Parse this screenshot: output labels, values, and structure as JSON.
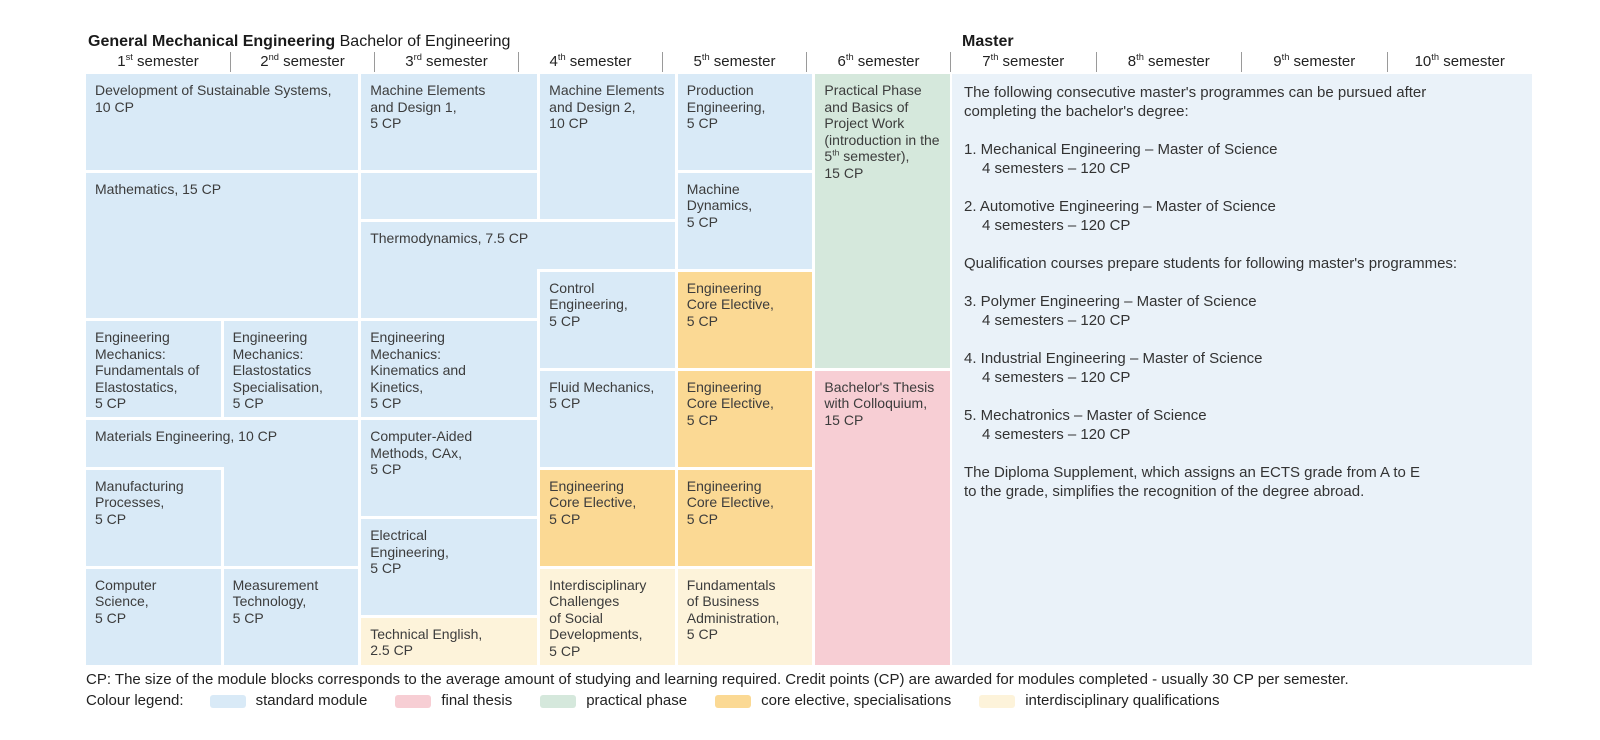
{
  "title": {
    "bachelor_bold": "General Mechanical Engineering",
    "bachelor_rest": " Bachelor of Engineering",
    "master": "Master"
  },
  "semester_headers": [
    {
      "html": "1<sup>st</sup> semester"
    },
    {
      "html": "2<sup>nd</sup> semester"
    },
    {
      "html": "3<sup>rd</sup> semester"
    },
    {
      "html": "4<sup>th</sup> semester"
    },
    {
      "html": "5<sup>th</sup> semester"
    },
    {
      "html": "6<sup>th</sup> semester"
    },
    {
      "html": "7<sup>th</sup> semester"
    },
    {
      "html": "8<sup>th</sup> semester"
    },
    {
      "html": "9<sup>th</sup> semester"
    },
    {
      "html": "10<sup>th</sup> semester"
    }
  ],
  "colors": {
    "standard_module": "#d9eaf7",
    "final_thesis": "#f7ced4",
    "practical_phase": "#d5e8dc",
    "core_elective": "#fbd994",
    "interdisciplinary": "#fdf3da",
    "master_panel": "#eaf2f9"
  },
  "modules": {
    "development_of_sustainable_systems": {
      "text": "Development of Sustainable Systems,\n10 CP"
    },
    "mathematics": {
      "text": "Mathematics, 15 CP"
    },
    "engineering_mechanics_fundamentals": {
      "text": "Engineering\nMechanics:\nFundamentals of\nElastostatics,\n5 CP"
    },
    "engineering_mechanics_specialisation": {
      "text": "Engineering\nMechanics:\nElastostatics\nSpecialisation,\n5 CP"
    },
    "materials_engineering": {
      "text": "Materials Engineering, 10 CP"
    },
    "manufacturing_processes": {
      "text": "Manufacturing\nProcesses,\n5 CP"
    },
    "computer_science": {
      "text": "Computer Science,\n5 CP"
    },
    "measurement_technology": {
      "text": "Measurement\nTechnology,\n5 CP"
    },
    "machine_elements_1": {
      "text": "Machine Elements\nand Design 1,\n5 CP"
    },
    "thermodynamics": {
      "text": "Thermodynamics, 7.5 CP"
    },
    "engineering_mechanics_kinematics": {
      "text": "Engineering\nMechanics:\nKinematics and\nKinetics,\n5 CP"
    },
    "computer_aided_methods": {
      "text": "Computer-Aided\nMethods, CAx,\n5 CP"
    },
    "electrical_engineering": {
      "text": "Electrical\nEngineering,\n5 CP"
    },
    "technical_english": {
      "text": "Technical English,\n2.5 CP"
    },
    "machine_elements_2": {
      "text": "Machine Elements\nand Design 2,\n10 CP"
    },
    "control_engineering": {
      "text": "Control\nEngineering,\n5 CP"
    },
    "fluid_mechanics": {
      "text": "Fluid Mechanics,\n5 CP"
    },
    "engineering_core_elective_sem4": {
      "text": "Engineering\nCore Elective,\n5 CP"
    },
    "interdisciplinary_challenges": {
      "text": "Interdisciplinary\nChallenges\nof Social\nDevelopments,\n5 CP"
    },
    "production_engineering": {
      "text": "Production\nEngineering,\n5 CP"
    },
    "machine_dynamics": {
      "text": "Machine\nDynamics,\n5 CP"
    },
    "engineering_core_elective_sem5a": {
      "text": "Engineering\nCore Elective,\n5 CP"
    },
    "engineering_core_elective_sem5b": {
      "text": "Engineering\nCore Elective,\n5 CP"
    },
    "engineering_core_elective_sem5c": {
      "text": "Engineering\nCore Elective,\n5 CP"
    },
    "fundamentals_business_administration": {
      "text": "Fundamentals\nof Business\nAdministration,\n5 CP"
    },
    "practical_phase": {
      "html": "Practical Phase\nand Basics of\nProject Work\n(introduction in the\n5<sup>th</sup> semester),\n15 CP"
    },
    "bachelors_thesis": {
      "text": "Bachelor's Thesis\nwith Colloquium,\n15 CP"
    }
  },
  "master_panel": {
    "intro": "The following consecutive master's programmes can be pursued after\ncompleting the bachelor's degree:",
    "programs": [
      {
        "line": "1. Mechanical Engineering – Master of Science",
        "detail": "4 semesters – 120 CP"
      },
      {
        "line": "2. Automotive Engineering – Master of Science",
        "detail": "4 semesters – 120 CP"
      }
    ],
    "qualification_note": "Qualification courses prepare students for following master's programmes:",
    "qualification_programs": [
      {
        "line": "3. Polymer Engineering – Master of Science",
        "detail": "4 semesters – 120 CP"
      },
      {
        "line": "4. Industrial Engineering – Master of Science",
        "detail": "4 semesters – 120 CP"
      },
      {
        "line": "5. Mechatronics – Master of Science",
        "detail": "4 semesters – 120 CP"
      }
    ],
    "diploma_note": "The Diploma Supplement, which assigns an ECTS grade from A to E\nto the grade, simplifies the recognition of the degree abroad."
  },
  "footer": {
    "cp_note": "CP: The size of the module blocks corresponds to the average amount of studying and learning required. Credit points (CP) are awarded for modules completed - usually 30 CP per semester.",
    "legend_label": "Colour legend:",
    "legend": [
      {
        "label": "standard module",
        "color": "#d9eaf7"
      },
      {
        "label": "final thesis",
        "color": "#f7ced4"
      },
      {
        "label": "practical phase",
        "color": "#d5e8dc"
      },
      {
        "label": "core elective, specialisations",
        "color": "#fbd994"
      },
      {
        "label": "interdisciplinary qualifications",
        "color": "#fdf3da"
      }
    ]
  }
}
